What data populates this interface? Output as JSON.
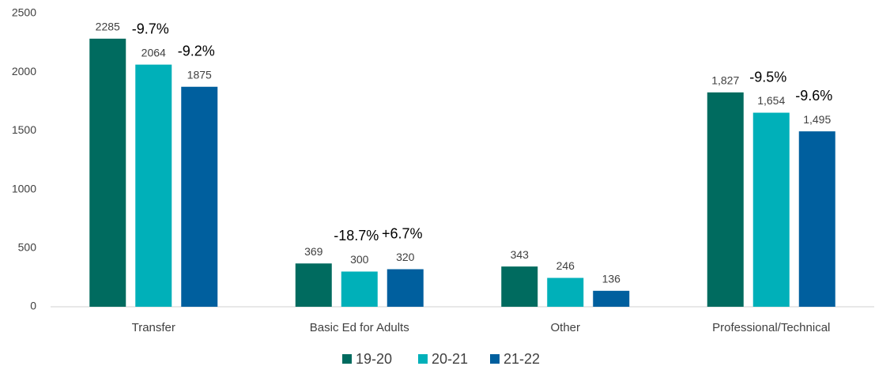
{
  "chart_data": {
    "type": "bar",
    "categories": [
      "Transfer",
      "Basic Ed for Adults",
      "Other",
      "Professional/Technical"
    ],
    "series": [
      {
        "name": "19-20",
        "color": "#006b5f",
        "values": [
          2285,
          369,
          343,
          1827
        ],
        "value_labels": [
          "2285",
          "369",
          "343",
          "1,827"
        ]
      },
      {
        "name": "20-21",
        "color": "#00b0b9",
        "values": [
          2064,
          300,
          246,
          1654
        ],
        "value_labels": [
          "2064",
          "300",
          "246",
          "1,654"
        ],
        "changes": [
          "-9.7%",
          "-18.7%",
          null,
          "-9.5%"
        ]
      },
      {
        "name": "21-22",
        "color": "#005f9e",
        "values": [
          1875,
          320,
          136,
          1495
        ],
        "value_labels": [
          "1875",
          "320",
          "136",
          "1,495"
        ],
        "changes": [
          "-9.2%",
          "+6.7%",
          null,
          "-9.6%"
        ]
      }
    ],
    "ylim": [
      0,
      2500
    ],
    "yticks": [
      0,
      500,
      1000,
      1500,
      2000,
      2500
    ],
    "grid": false,
    "legend": "bottom"
  }
}
